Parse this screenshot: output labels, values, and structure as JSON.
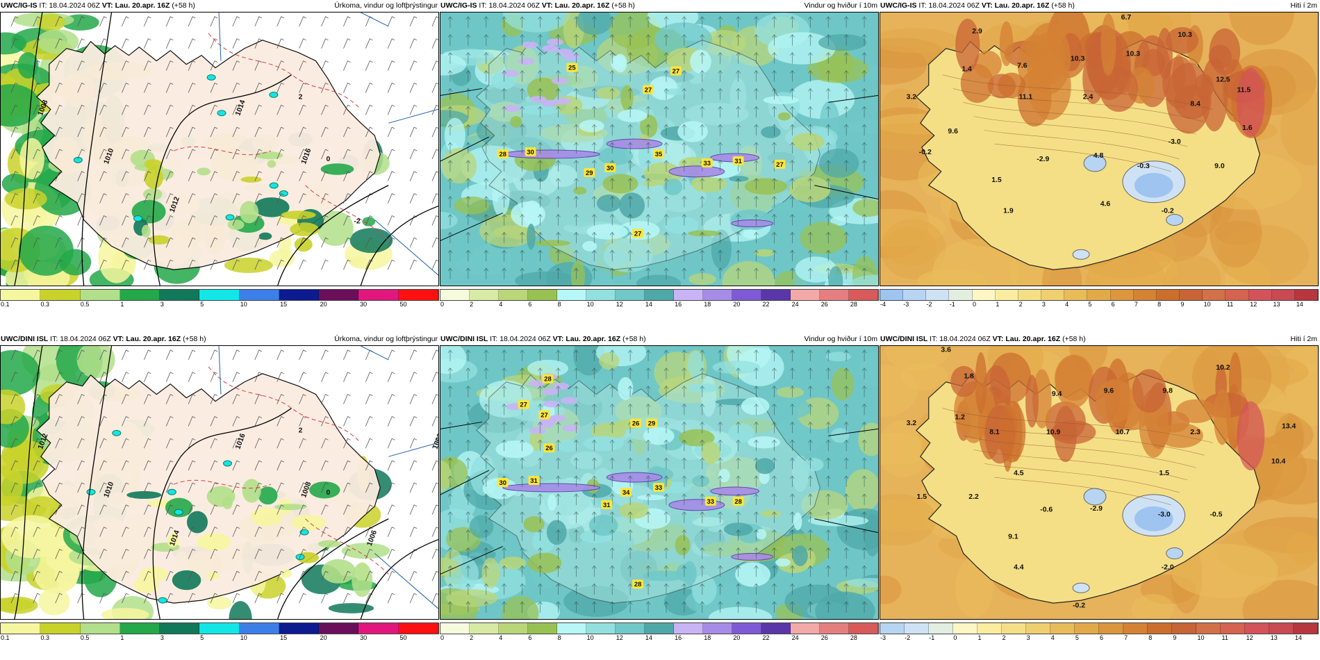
{
  "rows": [
    {
      "panels": [
        {
          "type": "precip",
          "model": "UWC/IG-IS",
          "it_label": "IT:",
          "it_value": "18.04.2024 06Z",
          "vt_label": "VT:",
          "vt_value": "Lau. 20.apr. 16Z",
          "lead": "(+58 h)",
          "title": "Úrkoma, vindur og loftþrýstingur",
          "isobars": [
            "1008",
            "1010",
            "1012",
            "1014",
            "1016"
          ],
          "temp_contours": [
            "2",
            "0",
            "-2"
          ]
        },
        {
          "type": "wind",
          "model": "UWC/IG-IS",
          "it_label": "IT:",
          "it_value": "18.04.2024 06Z",
          "vt_label": "VT:",
          "vt_value": "Lau. 20.apr. 16Z",
          "lead": "(+58 h)",
          "title": "Vindur og hviður í 10m",
          "gust_labels": [
            "25",
            "27",
            "27",
            "28",
            "30",
            "29",
            "30",
            "35",
            "33",
            "31",
            "27",
            "27"
          ]
        },
        {
          "type": "temp",
          "model": "UWC/IG-IS",
          "it_label": "IT:",
          "it_value": "18.04.2024 06Z",
          "vt_label": "VT:",
          "vt_value": "Lau. 20.apr. 16Z",
          "lead": "(+58 h)",
          "title": "Hiti í 2m",
          "temp_labels": [
            "6.7",
            "2.9",
            "1.4",
            "7.6",
            "10.3",
            "10.3",
            "10.3",
            "3.2",
            "11.1",
            "12.5",
            "11.5",
            "2.4",
            "8.4",
            "9.6",
            "1.6",
            "-0.2",
            "-2.9",
            "4.8",
            "-3.0",
            "-0.3",
            "9.0",
            "1.5",
            "4.6",
            "1.9",
            "-0.2"
          ]
        }
      ]
    },
    {
      "panels": [
        {
          "type": "precip",
          "model": "UWC/DINI ISL",
          "it_label": "IT:",
          "it_value": "18.04.2024 06Z",
          "vt_label": "VT:",
          "vt_value": "Lau. 20.apr. 16Z",
          "lead": "(+58 h)",
          "title": "Úrkoma, vindur og loftþrýstingur",
          "isobars": [
            "1012",
            "1010",
            "1014",
            "1016",
            "1008",
            "1006",
            "1002"
          ],
          "temp_contours": [
            "2",
            "0"
          ]
        },
        {
          "type": "wind",
          "model": "UWC/DINI ISL",
          "it_label": "IT:",
          "it_value": "18.04.2024 06Z",
          "vt_label": "VT:",
          "vt_value": "Lau. 20.apr. 16Z",
          "lead": "(+58 h)",
          "title": "Vindur og hviður í 10m",
          "gust_labels": [
            "28",
            "27",
            "27",
            "26",
            "29",
            "26",
            "30",
            "31",
            "31",
            "34",
            "33",
            "33",
            "28",
            "28"
          ]
        },
        {
          "type": "temp",
          "model": "UWC/DINI ISL",
          "it_label": "IT:",
          "it_value": "18.04.2024 06Z",
          "vt_label": "VT:",
          "vt_value": "Lau. 20.apr. 16Z",
          "lead": "(+58 h)",
          "title": "Hiti í 2m",
          "temp_labels": [
            "3.6",
            "1.8",
            "10.2",
            "9.4",
            "9.6",
            "9.8",
            "3.2",
            "1.2",
            "8.1",
            "10.9",
            "10.7",
            "2.3",
            "13.4",
            "10.4",
            "1.5",
            "4.5",
            "1.5",
            "2.2",
            "-0.6",
            "-2.9",
            "-3.0",
            "-0.5",
            "9.1",
            "4.4",
            "-2.0",
            "-0.2"
          ]
        }
      ]
    }
  ],
  "legends": {
    "precip": {
      "ticks": [
        "0.1",
        "0.3",
        "0.5",
        "1",
        "3",
        "5",
        "10",
        "15",
        "20",
        "30",
        "50"
      ],
      "colors": [
        "#f6f6a0",
        "#c9d22a",
        "#b2df8a",
        "#23a84a",
        "#11795a",
        "#12e6e6",
        "#3d7fe8",
        "#0c1b8f",
        "#6b0f5a",
        "#e2177e",
        "#ff1010"
      ]
    },
    "wind": {
      "ticks": [
        "0",
        "2",
        "4",
        "6",
        "8",
        "10",
        "12",
        "14",
        "16",
        "18",
        "20",
        "22",
        "24",
        "26",
        "28"
      ],
      "colors": [
        "#f7fbdd",
        "#d8eaa4",
        "#b9d679",
        "#98c154",
        "#b7f7f7",
        "#93e0e0",
        "#70c8c8",
        "#4fa8a8",
        "#c8b4f5",
        "#a68ce6",
        "#7f5ad6",
        "#5a37a8",
        "#f4a9a9",
        "#e57f7f",
        "#d85a5a"
      ]
    },
    "temp_top": {
      "ticks": [
        "-4",
        "-3",
        "-2",
        "-1",
        "0",
        "1",
        "2",
        "3",
        "4",
        "5",
        "6",
        "7",
        "8",
        "9",
        "10",
        "11",
        "12",
        "13",
        "14"
      ],
      "colors": [
        "#9ec4ef",
        "#b7d4f3",
        "#cfe2f5",
        "#e2eee0",
        "#fff6c5",
        "#fbeca0",
        "#f5df86",
        "#efcf70",
        "#e9bc5a",
        "#e2a949",
        "#db963e",
        "#d48234",
        "#cc6f2d",
        "#c86435",
        "#d27049",
        "#d66250",
        "#d4525a",
        "#c94a52",
        "#b8363d"
      ]
    },
    "temp_bottom": {
      "ticks": [
        "-3",
        "-2",
        "-1",
        "0",
        "1",
        "2",
        "3",
        "4",
        "5",
        "6",
        "7",
        "8",
        "9",
        "10",
        "11",
        "12",
        "13",
        "14"
      ],
      "colors": [
        "#b7d4f3",
        "#cfe2f5",
        "#e2eee0",
        "#fff6c5",
        "#fbeca0",
        "#f5df86",
        "#efcf70",
        "#e9bc5a",
        "#e2a949",
        "#db963e",
        "#d48234",
        "#cc6f2d",
        "#c86435",
        "#d27049",
        "#d66250",
        "#d4525a",
        "#c94a52",
        "#b8363d"
      ]
    }
  }
}
